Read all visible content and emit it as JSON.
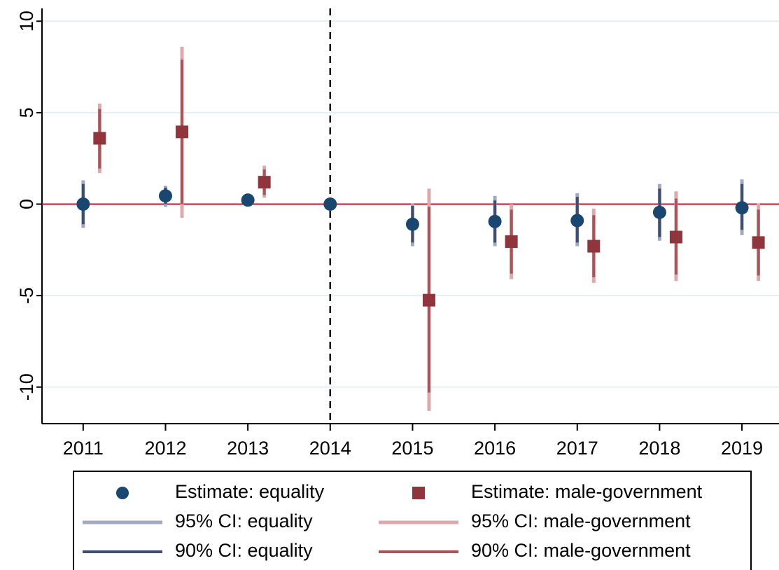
{
  "chart_data": {
    "type": "coefplot",
    "x": [
      2011,
      2012,
      2013,
      2014,
      2015,
      2016,
      2017,
      2018,
      2019
    ],
    "xlim": [
      2010.5,
      2019.45
    ],
    "xticks": [
      2011,
      2012,
      2013,
      2014,
      2015,
      2016,
      2017,
      2018,
      2019
    ],
    "ylim": [
      -12,
      10.7
    ],
    "yticks": [
      -10,
      -5,
      0,
      5,
      10
    ],
    "grid": true,
    "hline": 0,
    "vline": 2014,
    "series": [
      {
        "name": "Estimate: equality",
        "kind": "point",
        "marker": "circle",
        "color": "#1a476f",
        "values": [
          0,
          0.45,
          0.22,
          0,
          -1.1,
          -0.95,
          -0.9,
          -0.45,
          -0.2
        ]
      },
      {
        "name": "Estimate: male-government",
        "kind": "point",
        "marker": "square",
        "color": "#90353b",
        "values": [
          3.6,
          3.95,
          1.2,
          null,
          -5.25,
          -2.05,
          -2.3,
          -1.8,
          -2.1
        ]
      },
      {
        "name": "95% CI: equality",
        "kind": "range",
        "width": 5,
        "color": "#a3a9c0",
        "low": [
          -1.3,
          -0.15,
          0.05,
          0,
          -2.3,
          -2.3,
          -2.3,
          -2.0,
          -1.7
        ],
        "high": [
          1.3,
          1.0,
          0.4,
          0,
          0.05,
          0.45,
          0.6,
          1.1,
          1.35
        ]
      },
      {
        "name": "95% CI: male-government",
        "kind": "range",
        "width": 5,
        "color": "#dcaaac",
        "low": [
          1.7,
          -0.75,
          0.35,
          null,
          -11.3,
          -4.1,
          -4.3,
          -4.2,
          -4.2
        ],
        "high": [
          5.5,
          8.6,
          2.1,
          null,
          0.85,
          0,
          -0.25,
          0.7,
          0.05
        ]
      },
      {
        "name": "90% CI: equality",
        "kind": "range",
        "width": 4,
        "color": "#3f4e6e",
        "low": [
          -1.1,
          0,
          0.1,
          0,
          -2.1,
          -2.1,
          -2.1,
          -1.8,
          -1.4
        ],
        "high": [
          1.1,
          0.9,
          0.35,
          0,
          -0.1,
          0.2,
          0.4,
          0.85,
          1.1
        ]
      },
      {
        "name": "90% CI: male-government",
        "kind": "range",
        "width": 4,
        "color": "#a95458",
        "low": [
          1.95,
          0,
          0.5,
          null,
          -10.3,
          -3.8,
          -4.0,
          -3.85,
          -3.9
        ],
        "high": [
          5.2,
          7.9,
          1.9,
          null,
          -0.15,
          -0.3,
          -0.6,
          0.3,
          -0.3
        ]
      }
    ]
  }
}
